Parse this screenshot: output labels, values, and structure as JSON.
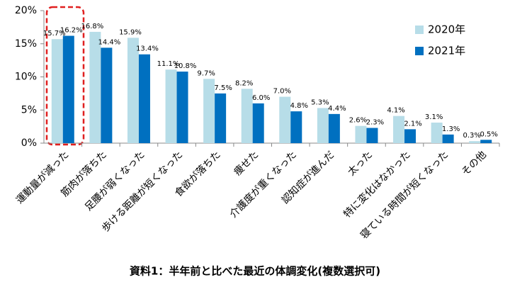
{
  "chart_data": {
    "type": "bar",
    "categories": [
      "運動量が減った",
      "筋肉が落ちた",
      "足腰が弱くなった",
      "歩ける距離が短くなった",
      "食欲が落ちた",
      "痩せた",
      "介護度が重くなった",
      "認知症が進んだ",
      "太った",
      "特に変化はなかった",
      "寝ている時間が短くなった",
      "その他"
    ],
    "series": [
      {
        "name": "2020年",
        "color": "#b7dde8",
        "values": [
          15.7,
          16.8,
          15.9,
          11.1,
          9.7,
          8.2,
          7.0,
          5.3,
          2.6,
          4.1,
          3.1,
          0.3
        ],
        "value_labels": [
          "15.7%",
          "16.8%",
          "15.9%",
          "11.1%",
          "9.7%",
          "8.2%",
          "7.0%",
          "5.3%",
          "2.6%",
          "4.1%",
          "3.1%",
          "0.3%"
        ]
      },
      {
        "name": "2021年",
        "color": "#0070c0",
        "values": [
          16.2,
          14.4,
          13.4,
          10.8,
          7.5,
          6.0,
          4.8,
          4.4,
          2.3,
          2.1,
          1.3,
          0.5
        ],
        "value_labels": [
          "16.2%",
          "14.4%",
          "13.4%",
          "10.8%",
          "7.5%",
          "6.0%",
          "4.8%",
          "4.4%",
          "2.3%",
          "2.1%",
          "1.3%",
          "0.5%"
        ]
      }
    ],
    "ylim": [
      0,
      20
    ],
    "yticks": [
      {
        "value": 0,
        "label": "0%"
      },
      {
        "value": 5,
        "label": "5%"
      },
      {
        "value": 10,
        "label": "10%"
      },
      {
        "value": 15,
        "label": "15%"
      },
      {
        "value": 20,
        "label": "20%"
      }
    ],
    "grid": false,
    "legend": "upper right",
    "caption": "資料1：半年前と比べた最近の体調変化(複数選択可)"
  }
}
